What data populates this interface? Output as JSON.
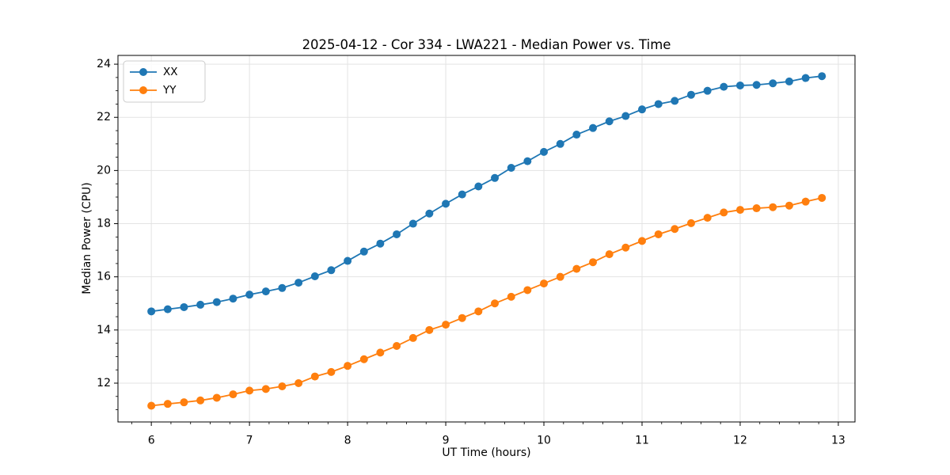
{
  "chart_data": {
    "type": "line",
    "title": "2025-04-12 - Cor 334 - LWA221 - Median Power vs. Time",
    "xlabel": "UT Time (hours)",
    "ylabel": "Median Power (CPU)",
    "xlim": [
      5.66,
      13.17
    ],
    "ylim": [
      10.54,
      24.33
    ],
    "xticks": [
      6,
      7,
      8,
      9,
      10,
      11,
      12,
      13
    ],
    "yticks": [
      12,
      14,
      16,
      18,
      20,
      22,
      24
    ],
    "x_minor_step": 0.2,
    "y_minor_step": 0.5,
    "grid": true,
    "legend_position": "upper left",
    "x": [
      6.0,
      6.167,
      6.333,
      6.5,
      6.667,
      6.833,
      7.0,
      7.167,
      7.333,
      7.5,
      7.667,
      7.833,
      8.0,
      8.167,
      8.333,
      8.5,
      8.667,
      8.833,
      9.0,
      9.167,
      9.333,
      9.5,
      9.667,
      9.833,
      10.0,
      10.167,
      10.333,
      10.5,
      10.667,
      10.833,
      11.0,
      11.167,
      11.333,
      11.5,
      11.667,
      11.833,
      12.0,
      12.167,
      12.333,
      12.5,
      12.667,
      12.833
    ],
    "series": [
      {
        "name": "XX",
        "color": "#1f77b4",
        "values": [
          14.7,
          14.78,
          14.86,
          14.95,
          15.05,
          15.18,
          15.33,
          15.45,
          15.58,
          15.78,
          16.02,
          16.25,
          16.6,
          16.95,
          17.25,
          17.6,
          18.0,
          18.38,
          18.75,
          19.1,
          19.4,
          19.72,
          20.1,
          20.35,
          20.7,
          21.0,
          21.35,
          21.6,
          21.85,
          22.05,
          22.3,
          22.5,
          22.62,
          22.85,
          23.0,
          23.15,
          23.2,
          23.22,
          23.28,
          23.35,
          23.48,
          23.55
        ]
      },
      {
        "name": "YY",
        "color": "#ff7f0e",
        "values": [
          11.15,
          11.22,
          11.28,
          11.35,
          11.45,
          11.58,
          11.72,
          11.78,
          11.88,
          12.0,
          12.25,
          12.42,
          12.65,
          12.9,
          13.15,
          13.4,
          13.7,
          14.0,
          14.2,
          14.45,
          14.7,
          15.0,
          15.25,
          15.5,
          15.75,
          16.0,
          16.3,
          16.55,
          16.85,
          17.1,
          17.35,
          17.6,
          17.8,
          18.02,
          18.22,
          18.42,
          18.52,
          18.58,
          18.62,
          18.68,
          18.83,
          18.97
        ]
      }
    ],
    "style": {
      "grid_color": "#e3e3e3",
      "spine_color": "#000000",
      "tick_color": "#000000",
      "legend_edge_color": "#cccccc",
      "legend_face_color": "#ffffff",
      "marker_radius": 5,
      "line_width": 1.8
    }
  }
}
